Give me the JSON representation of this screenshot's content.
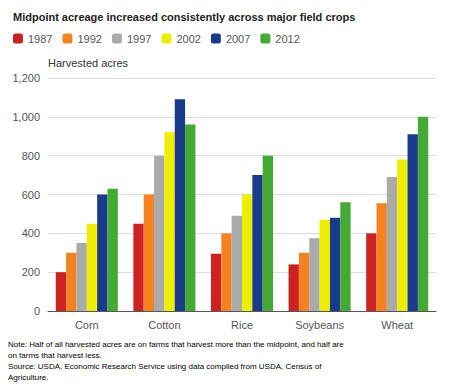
{
  "chart_data": {
    "type": "bar",
    "title": "Midpoint acreage increased consistently across major field crops",
    "ylabel": "Harvested acres",
    "annotations": [
      "Note: Half of all harvested acres are on farms that harvest more than the midpoint, and half are\non farms that harvest less.\nSource: USDA, Economic Research Service using data compiled from USDA, Census of\nAgriculture."
    ],
    "categories": [
      "Corn",
      "Cotton",
      "Rice",
      "Soybeans",
      "Wheat"
    ],
    "series": [
      {
        "name": "1987",
        "color": "#cc2222",
        "values": [
          200,
          450,
          295,
          240,
          400
        ]
      },
      {
        "name": "1992",
        "color": "#f58220",
        "values": [
          300,
          600,
          400,
          300,
          555
        ]
      },
      {
        "name": "1997",
        "color": "#aaaaaa",
        "values": [
          350,
          800,
          490,
          375,
          690
        ]
      },
      {
        "name": "2002",
        "color": "#eeee00",
        "values": [
          450,
          920,
          600,
          470,
          780
        ]
      },
      {
        "name": "2007",
        "color": "#1a3a8c",
        "values": [
          600,
          1090,
          700,
          480,
          910
        ]
      },
      {
        "name": "2012",
        "color": "#44aa33",
        "values": [
          630,
          960,
          800,
          560,
          1000
        ]
      }
    ],
    "ylim": [
      0,
      1200
    ],
    "yticks": [
      0,
      200,
      400,
      600,
      800,
      {
        "value": 1000,
        "label": "1,000"
      },
      {
        "value": 1200,
        "label": "1,200"
      }
    ],
    "grid": true,
    "legend": "upper left"
  }
}
